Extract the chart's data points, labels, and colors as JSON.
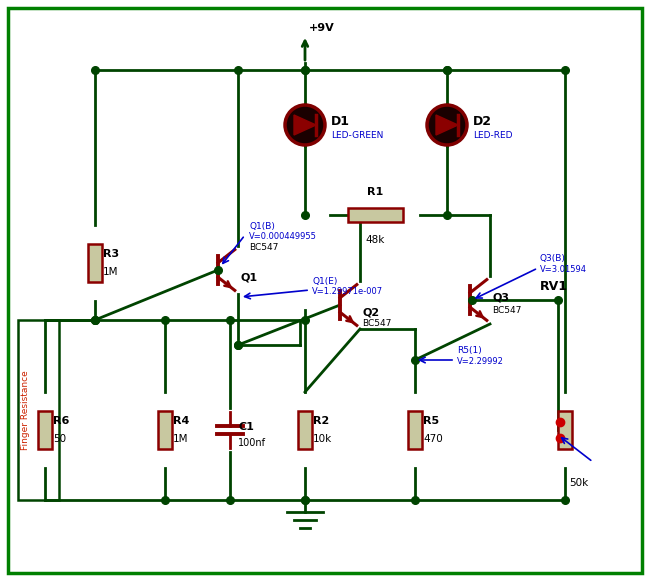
{
  "figw": 6.5,
  "figh": 5.81,
  "dpi": 100,
  "bg": "#ffffff",
  "border_color": "#008000",
  "wire_color": "#004400",
  "comp_color": "#8B0000",
  "res_fill": "#c8c8a0",
  "led_dark": "#1a0000",
  "led_border": "#6b0000",
  "led_inner": "#8B0000",
  "blue": "#0000cc",
  "red_lbl": "#cc2200",
  "black": "#000000",
  "vcc": "+9V",
  "components": {
    "R3": "1M",
    "R4": "1M",
    "R6": "50",
    "C1": "100nf",
    "R2": "10k",
    "R5": "470",
    "R1": "48k",
    "RV1": "50k",
    "D1_lbl": "LED-GREEN",
    "D2_lbl": "LED-RED",
    "Q1_lbl": "BC547",
    "Q2_lbl": "BC547",
    "Q3_lbl": "BC547"
  },
  "ann": {
    "Q1B_l1": "Q1(B)",
    "Q1B_l2": "V=0.000449955",
    "Q1E_l1": "Q1(E)",
    "Q1E_l2": "V=1.29971e-007",
    "R51_l1": "R5(1)",
    "R51_l2": "V=2.29992",
    "Q3B_l1": "Q3(B)",
    "Q3B_l2": "V=3.01594"
  },
  "finger": "Finger Resistance"
}
